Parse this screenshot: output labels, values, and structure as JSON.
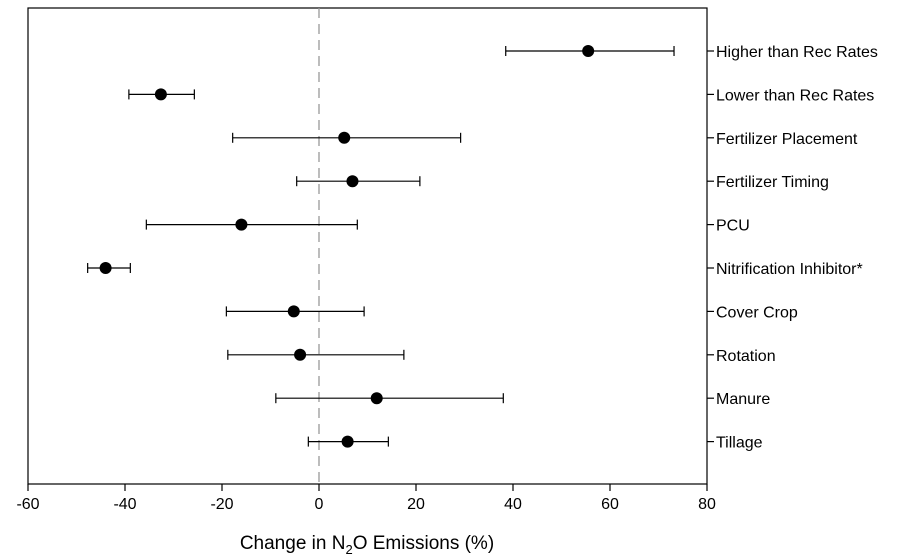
{
  "chart_data": {
    "type": "scatter",
    "orientation": "horizontal-forest-plot",
    "xlabel": {
      "prefix": "Change in N",
      "subscript": "2",
      "suffix": "O Emissions (%)"
    },
    "xlim": [
      -60,
      80
    ],
    "xticks": [
      "-60",
      "-40",
      "-20",
      "0",
      "20",
      "40",
      "60",
      "80"
    ],
    "reference_line": {
      "x": 0,
      "style": "dashed",
      "color": "#999999"
    },
    "grid": false,
    "categories": [
      "Higher than Rec Rates",
      "Lower than Rec Rates",
      "Fertilizer Placement",
      "Fertilizer Timing",
      "PCU",
      "Nitrification Inhibitor*",
      "Cover Crop",
      "Rotation",
      "Manure",
      "Tillage"
    ],
    "points": [
      {
        "label": "Higher than Rec Rates",
        "value": 55.5,
        "low": 38.5,
        "high": 73.2
      },
      {
        "label": "Lower than Rec Rates",
        "value": -32.6,
        "low": -39.2,
        "high": -25.7
      },
      {
        "label": "Fertilizer Placement",
        "value": 5.2,
        "low": -17.8,
        "high": 29.2
      },
      {
        "label": "Fertilizer Timing",
        "value": 6.9,
        "low": -4.6,
        "high": 20.8
      },
      {
        "label": "PCU",
        "value": -16.0,
        "low": -35.6,
        "high": 7.9
      },
      {
        "label": "Nitrification Inhibitor*",
        "value": -44.0,
        "low": -47.7,
        "high": -38.9
      },
      {
        "label": "Cover Crop",
        "value": -5.2,
        "low": -19.1,
        "high": 9.3
      },
      {
        "label": "Rotation",
        "value": -3.9,
        "low": -18.8,
        "high": 17.5
      },
      {
        "label": "Manure",
        "value": 11.9,
        "low": -8.9,
        "high": 38.0
      },
      {
        "label": "Tillage",
        "value": 5.9,
        "low": -2.2,
        "high": 14.3
      }
    ],
    "colors": {
      "marker": "#000000",
      "errorbar": "#000000",
      "axis": "#000000"
    }
  }
}
